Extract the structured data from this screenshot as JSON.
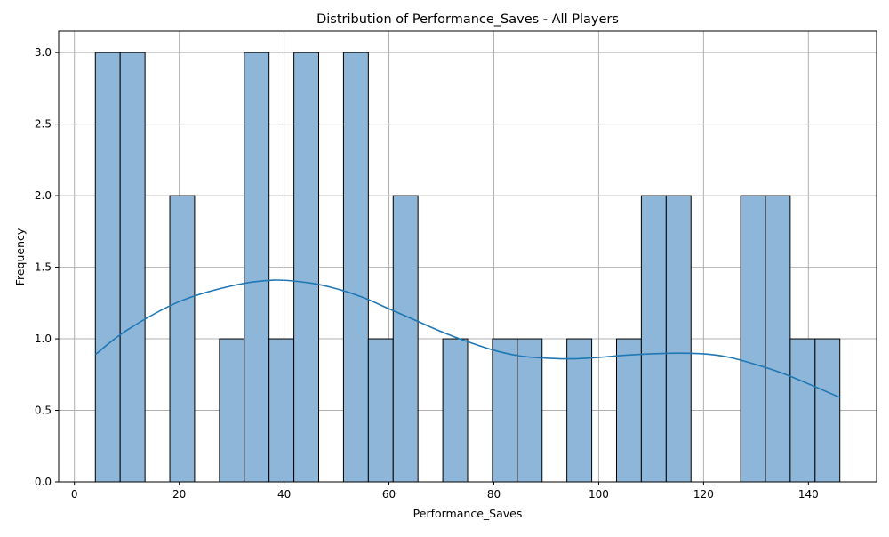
{
  "chart_data": {
    "type": "bar",
    "title": "Distribution of Performance_Saves - All Players",
    "xlabel": "Performance_Saves",
    "ylabel": "Frequency",
    "xlim": [
      -3,
      153
    ],
    "ylim": [
      0,
      3.15
    ],
    "x_ticks": [
      0,
      20,
      40,
      60,
      80,
      100,
      120,
      140
    ],
    "y_ticks": [
      0.0,
      0.5,
      1.0,
      1.5,
      2.0,
      2.5,
      3.0
    ],
    "x_tick_labels": [
      "0",
      "20",
      "40",
      "60",
      "80",
      "100",
      "120",
      "140"
    ],
    "y_tick_labels": [
      "0.0",
      "0.5",
      "1.0",
      "1.5",
      "2.0",
      "2.5",
      "3.0"
    ],
    "grid": true,
    "bins": {
      "edges": [
        4.0,
        8.73,
        13.47,
        18.2,
        22.93,
        27.67,
        32.4,
        37.13,
        41.87,
        46.6,
        51.33,
        56.07,
        60.8,
        65.53,
        70.27,
        75.0,
        79.73,
        84.47,
        89.2,
        93.93,
        98.67,
        103.4,
        108.13,
        112.87,
        117.6,
        122.33,
        127.07,
        131.8,
        136.53,
        141.27,
        146.0
      ],
      "counts": [
        3,
        3,
        0,
        2,
        0,
        1,
        3,
        1,
        3,
        0,
        3,
        1,
        2,
        0,
        1,
        0,
        1,
        1,
        0,
        1,
        0,
        1,
        2,
        2,
        0,
        0,
        2,
        2,
        1,
        1
      ]
    },
    "kde": {
      "x": [
        4,
        10,
        20,
        30,
        38,
        45,
        50,
        55,
        60,
        65,
        70,
        75,
        80,
        85,
        90,
        95,
        100,
        105,
        110,
        115,
        120,
        125,
        130,
        135,
        140,
        146
      ],
      "y": [
        0.89,
        1.06,
        1.26,
        1.37,
        1.41,
        1.39,
        1.35,
        1.29,
        1.21,
        1.13,
        1.05,
        0.98,
        0.92,
        0.88,
        0.865,
        0.86,
        0.87,
        0.885,
        0.895,
        0.9,
        0.895,
        0.87,
        0.82,
        0.76,
        0.685,
        0.59
      ]
    },
    "colors": {
      "bar_fill": "#8db6d9",
      "bar_edge": "#000000",
      "kde_line": "#1f77b4",
      "grid": "#b0b0b0"
    }
  }
}
